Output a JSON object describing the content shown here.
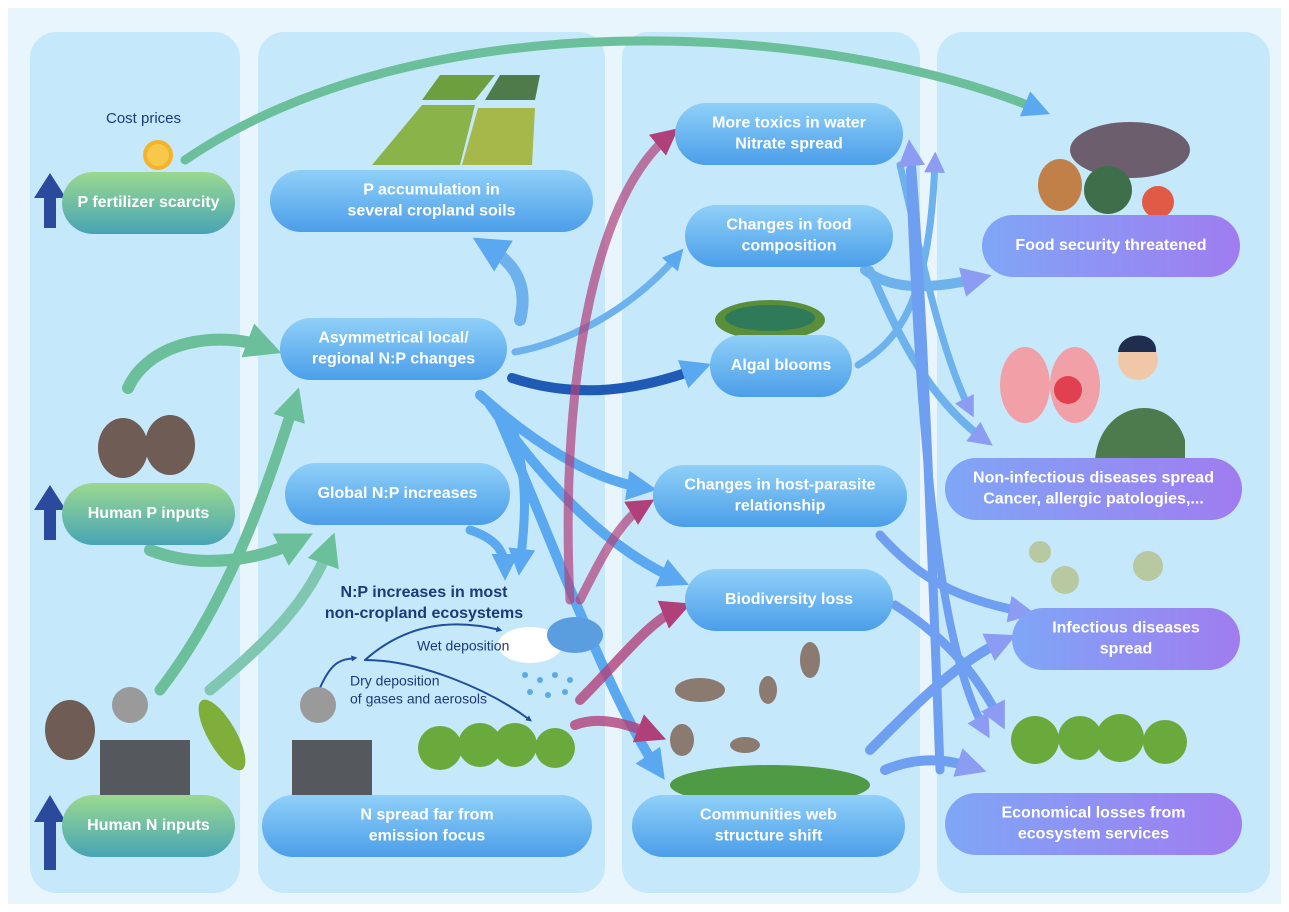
{
  "annotations": {
    "cost_prices": "Cost prices",
    "np_increase": [
      "N:P increases in most",
      "non-cropland ecosystems"
    ],
    "wet_deposition": "Wet deposition",
    "dry_deposition": [
      "Dry deposition",
      "of gases and aerosols"
    ]
  },
  "nodes": [
    {
      "label": [
        "P fertilizer scarcity"
      ]
    },
    {
      "label": [
        "Human P inputs"
      ]
    },
    {
      "label": [
        "Human N inputs"
      ]
    },
    {
      "label": [
        "P accumulation in",
        "several cropland soils"
      ]
    },
    {
      "label": [
        "Asymmetrical local/",
        "regional N:P changes"
      ]
    },
    {
      "label": [
        "Global N:P increases"
      ]
    },
    {
      "label": [
        "N spread far from",
        "emission focus"
      ]
    },
    {
      "label": [
        "More toxics in water",
        "Nitrate spread"
      ]
    },
    {
      "label": [
        "Changes in food",
        "composition"
      ]
    },
    {
      "label": [
        "Algal blooms"
      ]
    },
    {
      "label": [
        "Changes in host-parasite",
        "relationship"
      ]
    },
    {
      "label": [
        "Biodiversity loss"
      ]
    },
    {
      "label": [
        "Communities web",
        "structure shift"
      ]
    },
    {
      "label": [
        "Food security threatened"
      ]
    },
    {
      "label": [
        "Non-infectious diseases spread",
        "Cancer, allergic patologies,..."
      ]
    },
    {
      "label": [
        "Infectious diseases",
        "spread"
      ]
    },
    {
      "label": [
        "Economical losses from",
        "ecosystem services"
      ]
    }
  ]
}
